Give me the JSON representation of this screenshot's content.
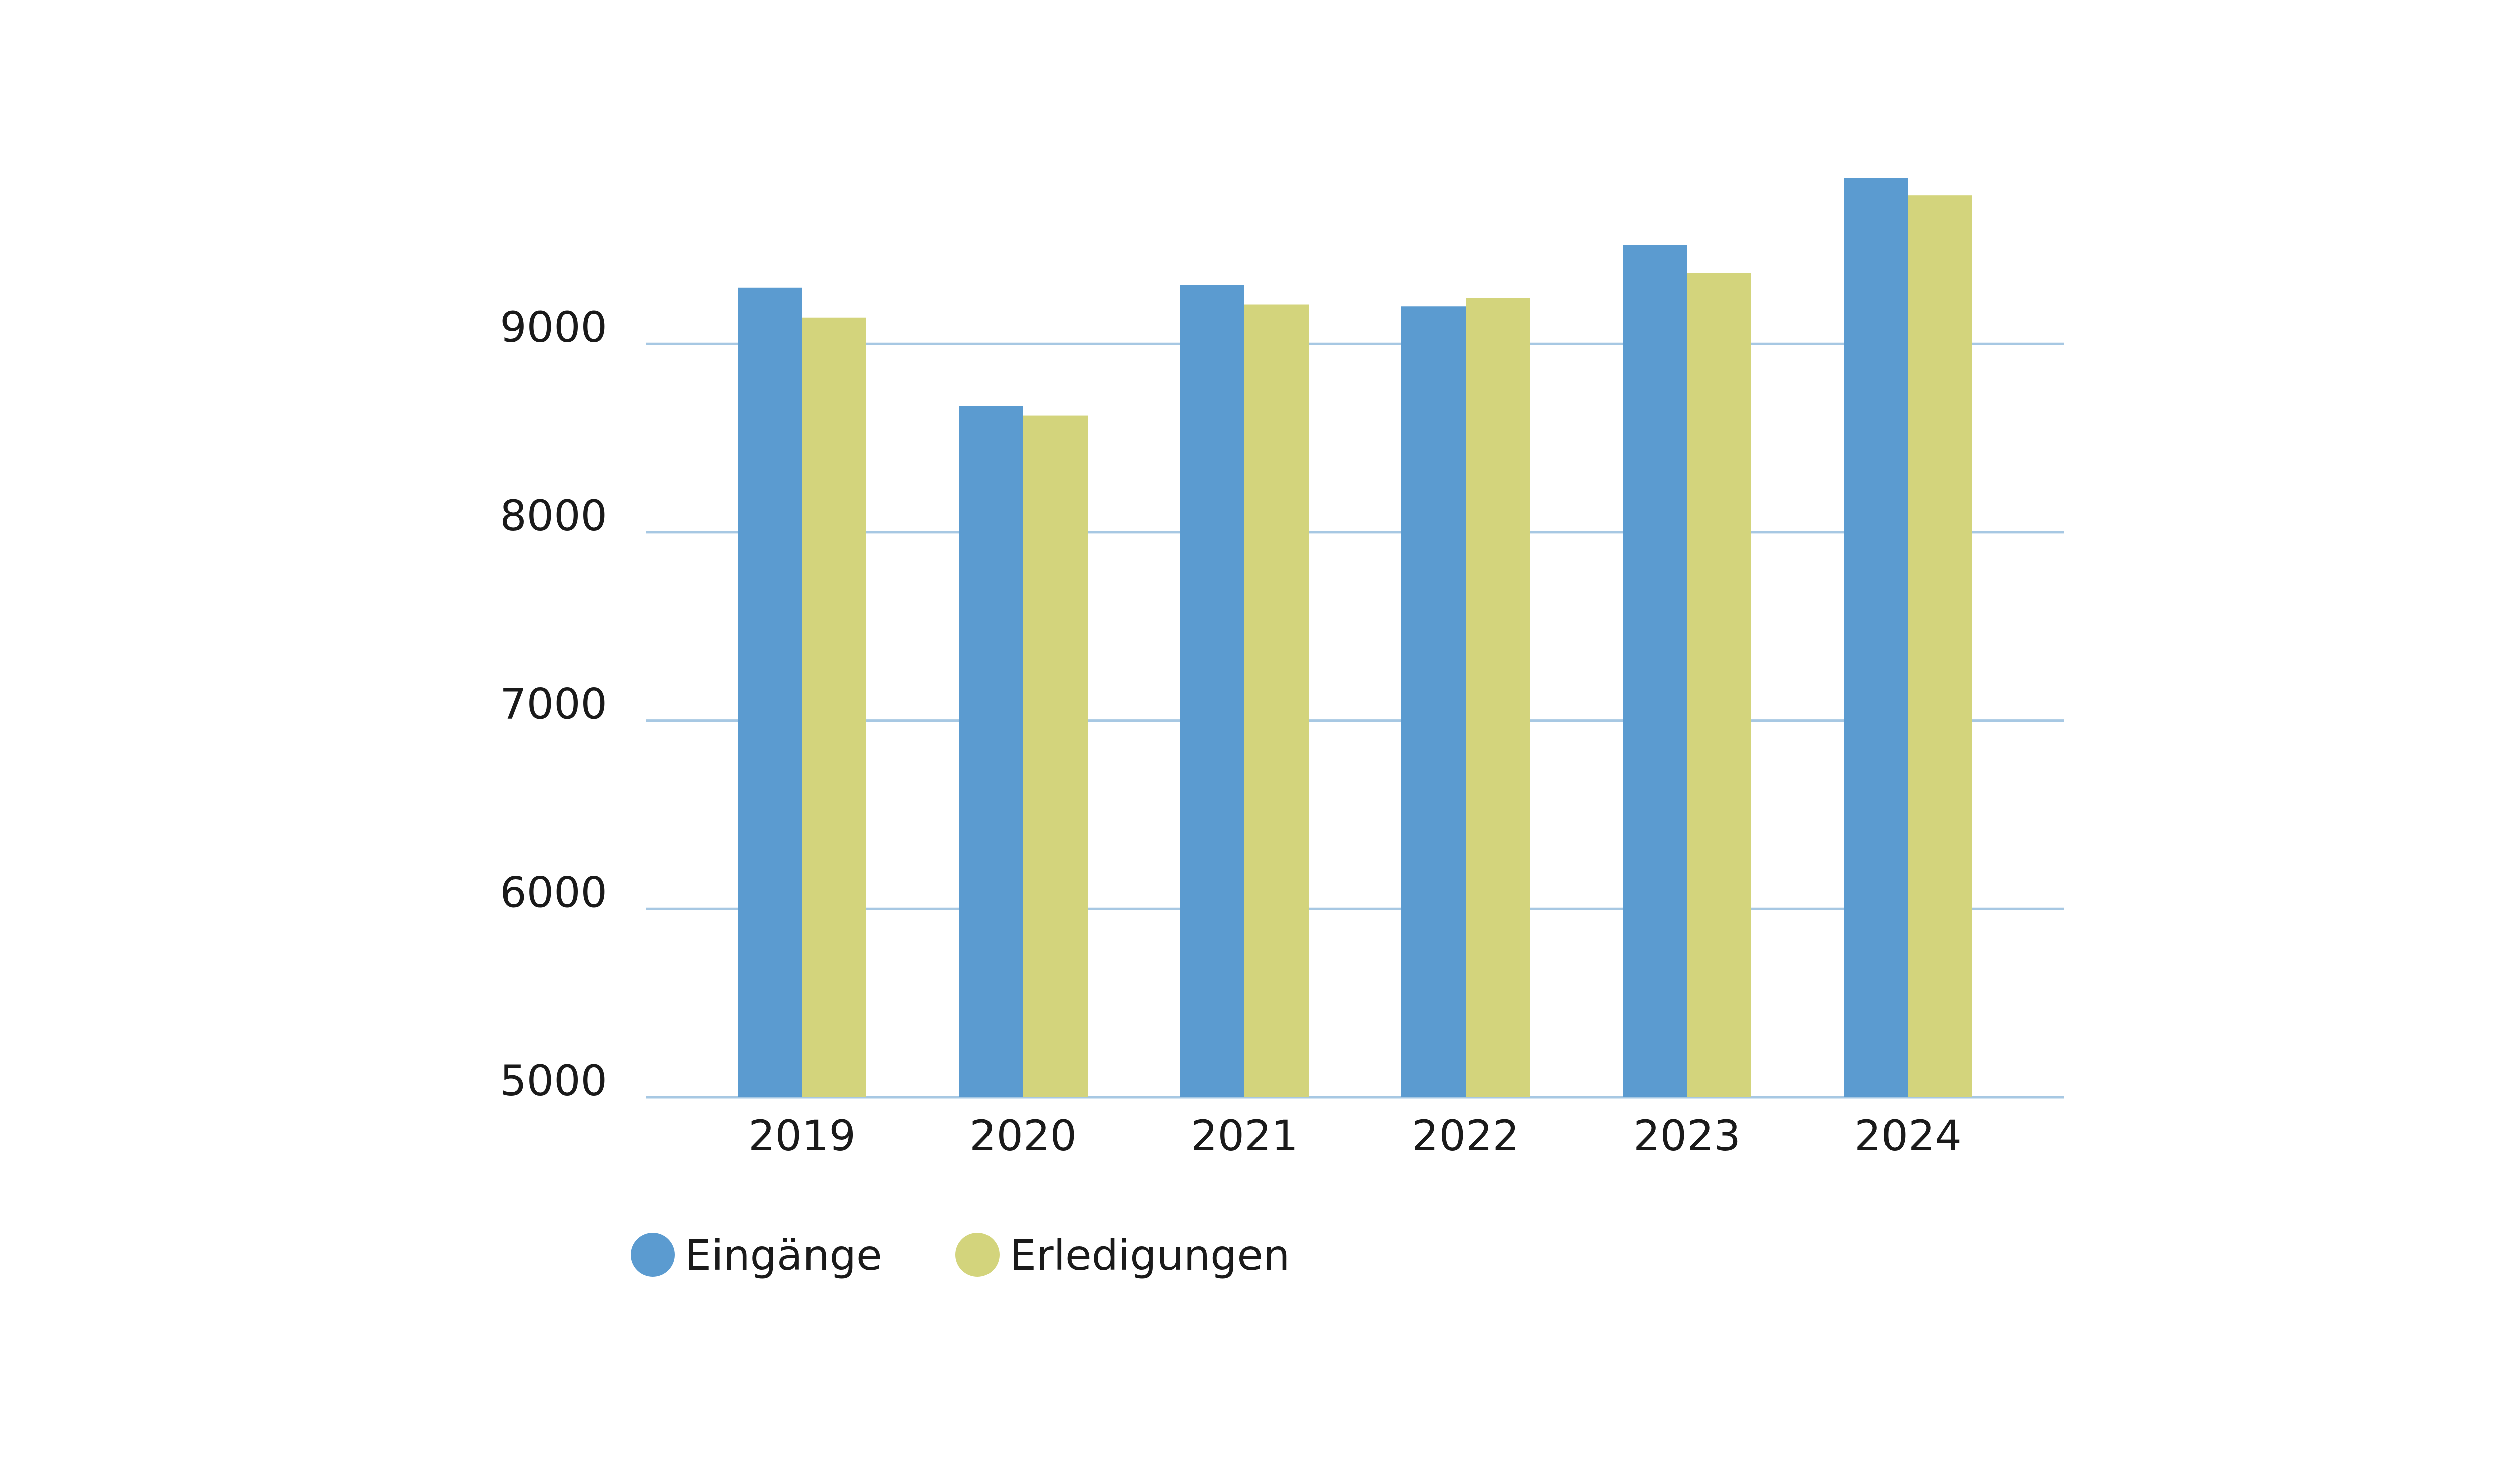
{
  "chart_data": {
    "type": "bar",
    "title": "",
    "xlabel": "",
    "ylabel": "",
    "categories": [
      "2019",
      "2020",
      "2021",
      "2022",
      "2023",
      "2024"
    ],
    "series": [
      {
        "name": "Eingänge",
        "color": "#5b9bd0",
        "values": [
          9300,
          8670,
          9315,
          9200,
          9525,
          9880
        ]
      },
      {
        "name": "Erledigungen",
        "color": "#d3d47c",
        "values": [
          9140,
          8620,
          9210,
          9245,
          9375,
          9790
        ]
      }
    ],
    "ylim": [
      5000,
      10000
    ],
    "yticks": [
      "5000",
      "6000",
      "7000",
      "8000",
      "9000"
    ],
    "grid": true,
    "grid_color": "#a7c8e3",
    "legend": "bottom-left"
  }
}
